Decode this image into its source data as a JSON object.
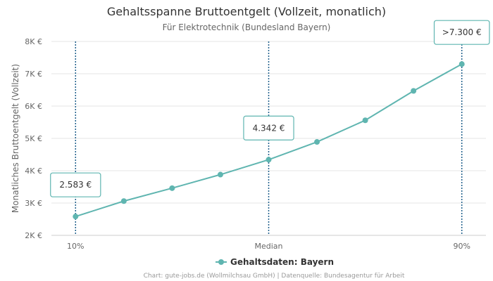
{
  "chart_data": {
    "type": "line",
    "title": "Gehaltsspanne Bruttoentgelt (Vollzeit, monatlich)",
    "subtitle": "Für Elektrotechnik (Bundesland Bayern)",
    "ylabel": "Monatliches Bruttoentgelt (Vollzeit)",
    "xlabel": "",
    "ylim": [
      2000,
      8000
    ],
    "yticks": [
      2000,
      3000,
      4000,
      5000,
      6000,
      7000,
      8000
    ],
    "ytick_labels": [
      "2K €",
      "3K €",
      "4K €",
      "5K €",
      "6K €",
      "7K €",
      "8K €"
    ],
    "x_range": [
      0.5,
      9.5
    ],
    "x_ticks": [
      {
        "x": 1,
        "label": "10%"
      },
      {
        "x": 5,
        "label": "Median"
      },
      {
        "x": 9,
        "label": "90%"
      }
    ],
    "series": [
      {
        "name": "Gehaltsdaten: Bayern",
        "color": "#5fb5b0",
        "x": [
          1,
          2,
          3,
          4,
          5,
          6,
          7,
          8,
          9
        ],
        "values": [
          2583,
          3060,
          3460,
          3880,
          4342,
          4890,
          5560,
          6470,
          7300
        ]
      }
    ],
    "reference_lines": [
      {
        "x": 1,
        "color": "#1f5f8b"
      },
      {
        "x": 5,
        "color": "#1f5f8b"
      },
      {
        "x": 9,
        "color": "#1f5f8b"
      }
    ],
    "annotations": [
      {
        "x": 1,
        "y": 2583,
        "text": "2.583 €"
      },
      {
        "x": 5,
        "y": 4342,
        "text": "4.342 €"
      },
      {
        "x": 9,
        "y": 7300,
        "text": ">7.300 €"
      }
    ],
    "grid": true,
    "legend_position": "bottom-center",
    "credits": "Chart: gute-jobs.de (Wollmilchsau GmbH) | Datenquelle: Bundesagentur für Arbeit"
  }
}
